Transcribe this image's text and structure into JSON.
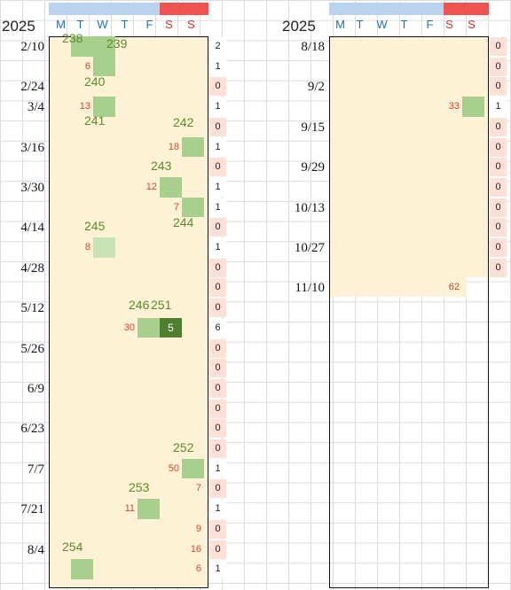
{
  "left": {
    "year": "2025",
    "day_headers": [
      "M",
      "T",
      "W",
      "T",
      "F",
      "S",
      "S"
    ],
    "date_labels": [
      {
        "text": "2/10",
        "row": 0
      },
      {
        "text": "2/24",
        "row": 2
      },
      {
        "text": "3/4",
        "row": 3
      },
      {
        "text": "3/16",
        "row": 5
      },
      {
        "text": "3/30",
        "row": 7
      },
      {
        "text": "4/14",
        "row": 9
      },
      {
        "text": "4/28",
        "row": 11
      },
      {
        "text": "5/12",
        "row": 13
      },
      {
        "text": "5/26",
        "row": 15
      },
      {
        "text": "6/9",
        "row": 17
      },
      {
        "text": "6/23",
        "row": 19
      },
      {
        "text": "7/7",
        "row": 21
      },
      {
        "text": "7/21",
        "row": 23
      },
      {
        "text": "8/4",
        "row": 25
      }
    ],
    "green_cells": [
      {
        "row": 0,
        "col": 1,
        "shade": "normal",
        "text": ""
      },
      {
        "row": 0,
        "col": 2,
        "shade": "normal",
        "text": ""
      },
      {
        "row": 1,
        "col": 2,
        "shade": "normal",
        "text": ""
      },
      {
        "row": 3,
        "col": 2,
        "shade": "normal",
        "text": ""
      },
      {
        "row": 5,
        "col": 6,
        "shade": "normal",
        "text": ""
      },
      {
        "row": 7,
        "col": 5,
        "shade": "normal",
        "text": ""
      },
      {
        "row": 8,
        "col": 6,
        "shade": "normal",
        "text": ""
      },
      {
        "row": 10,
        "col": 2,
        "shade": "light",
        "text": ""
      },
      {
        "row": 14,
        "col": 4,
        "shade": "normal",
        "text": ""
      },
      {
        "row": 14,
        "col": 5,
        "shade": "dark",
        "text": "5"
      },
      {
        "row": 21,
        "col": 6,
        "shade": "normal",
        "text": ""
      },
      {
        "row": 23,
        "col": 4,
        "shade": "normal",
        "text": ""
      },
      {
        "row": 26,
        "col": 1,
        "shade": "normal",
        "text": ""
      }
    ],
    "green_numbers": [
      {
        "text": "238",
        "row": 0,
        "col": 1,
        "dy": -6
      },
      {
        "text": "239",
        "row": 0,
        "col": 3,
        "dy": 0
      },
      {
        "text": "240",
        "row": 2,
        "col": 2,
        "dy": -2
      },
      {
        "text": "241",
        "row": 4,
        "col": 2,
        "dy": -4
      },
      {
        "text": "242",
        "row": 4,
        "col": 6,
        "dy": -2
      },
      {
        "text": "243",
        "row": 6,
        "col": 5,
        "dy": 2
      },
      {
        "text": "244",
        "row": 9,
        "col": 6,
        "dy": -2
      },
      {
        "text": "245",
        "row": 9,
        "col": 2,
        "dy": 2
      },
      {
        "text": "246",
        "row": 13,
        "col": 4,
        "dy": 0
      },
      {
        "text": "251",
        "row": 13,
        "col": 5,
        "dy": 0
      },
      {
        "text": "252",
        "row": 20,
        "col": 6,
        "dy": 2
      },
      {
        "text": "253",
        "row": 22,
        "col": 4,
        "dy": 2
      },
      {
        "text": "254",
        "row": 25,
        "col": 1,
        "dy": 0
      }
    ],
    "red_numbers": [
      {
        "text": "6",
        "row": 1,
        "col": 1
      },
      {
        "text": "13",
        "row": 3,
        "col": 1
      },
      {
        "text": "18",
        "row": 5,
        "col": 5
      },
      {
        "text": "12",
        "row": 7,
        "col": 4
      },
      {
        "text": "7",
        "row": 8,
        "col": 5
      },
      {
        "text": "8",
        "row": 10,
        "col": 1
      },
      {
        "text": "30",
        "row": 14,
        "col": 3
      },
      {
        "text": "50",
        "row": 21,
        "col": 5
      },
      {
        "text": "7",
        "row": 22,
        "col": 6
      },
      {
        "text": "11",
        "row": 23,
        "col": 3
      },
      {
        "text": "9",
        "row": 24,
        "col": 6
      },
      {
        "text": "16",
        "row": 25,
        "col": 6
      },
      {
        "text": "6",
        "row": 26,
        "col": 6
      }
    ],
    "counts": [
      "2",
      "1",
      "0",
      "1",
      "0",
      "1",
      "0",
      "1",
      "1",
      "0",
      "1",
      "0",
      "0",
      "0",
      "6",
      "0",
      "0",
      "0",
      "0",
      "0",
      "0",
      "1",
      "0",
      "1",
      "0",
      "0",
      "1"
    ]
  },
  "right": {
    "year": "2025",
    "day_headers": [
      "M",
      "T",
      "W",
      "T",
      "F",
      "S",
      "S"
    ],
    "date_labels": [
      {
        "text": "8/18",
        "row": 0
      },
      {
        "text": "9/2",
        "row": 2
      },
      {
        "text": "9/15",
        "row": 4
      },
      {
        "text": "9/29",
        "row": 6
      },
      {
        "text": "10/13",
        "row": 8
      },
      {
        "text": "10/27",
        "row": 10
      },
      {
        "text": "11/10",
        "row": 12
      }
    ],
    "green_cells": [
      {
        "row": 3,
        "col": 6,
        "shade": "normal",
        "text": ""
      }
    ],
    "red_numbers": [
      {
        "text": "33",
        "row": 3,
        "col": 5
      },
      {
        "text": "62",
        "row": 12,
        "col": 5
      }
    ],
    "counts": [
      "0",
      "0",
      "0",
      "1",
      "0",
      "0",
      "0",
      "0",
      "0",
      "0",
      "0",
      "0"
    ]
  }
}
